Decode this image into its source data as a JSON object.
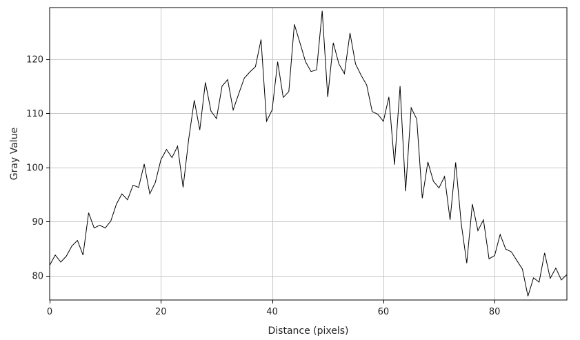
{
  "chart_data": {
    "type": "line",
    "title": "",
    "xlabel": "Distance (pixels)",
    "ylabel": "Gray Value",
    "xlim": [
      0,
      93
    ],
    "ylim": [
      75.5,
      129.5
    ],
    "grid": true,
    "x_ticks": [
      0,
      20,
      40,
      60,
      80
    ],
    "y_ticks": [
      80,
      90,
      100,
      110,
      120
    ],
    "colors": {
      "line": "#000000",
      "grid": "#c8c8c8",
      "frame": "#000000",
      "background": "#ffffff"
    },
    "series": [
      {
        "x": [
          0,
          1,
          2,
          3,
          4,
          5,
          6,
          7,
          8,
          9,
          10,
          11,
          12,
          13,
          14,
          15,
          16,
          17,
          18,
          19,
          20,
          21,
          22,
          23,
          24,
          25,
          26,
          27,
          28,
          29,
          30,
          31,
          32,
          33,
          34,
          35,
          36,
          37,
          38,
          39,
          40,
          41,
          42,
          43,
          44,
          45,
          46,
          47,
          48,
          49,
          50,
          51,
          52,
          53,
          54,
          55,
          56,
          57,
          58,
          59,
          60,
          61,
          62,
          63,
          64,
          65,
          66,
          67,
          68,
          69,
          70,
          71,
          72,
          73,
          74,
          75,
          76,
          77,
          78,
          79,
          80,
          81,
          82,
          83,
          84,
          85,
          86,
          87,
          88,
          89,
          90,
          91,
          92,
          93
        ],
        "values": [
          81.9,
          83.8,
          82.5,
          83.6,
          85.5,
          86.5,
          83.8,
          91.6,
          88.8,
          89.3,
          88.8,
          90.1,
          93.2,
          95.1,
          94.0,
          96.7,
          96.3,
          100.6,
          95.1,
          97.2,
          101.4,
          103.3,
          101.8,
          103.9,
          96.3,
          105.2,
          112.4,
          106.9,
          115.7,
          110.4,
          109.0,
          115.0,
          116.2,
          110.6,
          113.6,
          116.5,
          117.6,
          118.6,
          123.6,
          108.5,
          110.6,
          119.5,
          112.9,
          114.0,
          126.4,
          123.0,
          119.5,
          117.7,
          118.0,
          128.9,
          113.0,
          123.0,
          119.1,
          117.3,
          124.8,
          119.1,
          117.0,
          115.2,
          110.3,
          109.8,
          108.5,
          113.0,
          100.5,
          115.0,
          95.6,
          111.0,
          108.9,
          94.3,
          101.0,
          97.4,
          96.2,
          98.3,
          90.3,
          100.9,
          89.6,
          82.3,
          93.2,
          88.3,
          90.3,
          83.1,
          83.7,
          87.6,
          84.9,
          84.4,
          82.8,
          81.2,
          76.2,
          79.6,
          78.8,
          84.2,
          79.5,
          81.4,
          79.2,
          80.2
        ]
      }
    ]
  }
}
